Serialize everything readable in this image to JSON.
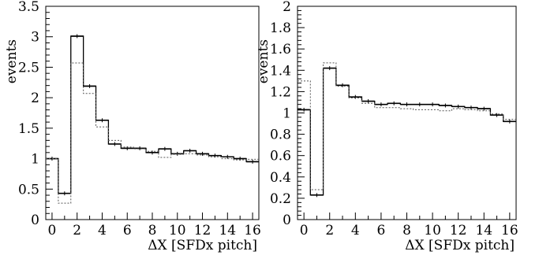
{
  "chart_data": [
    {
      "type": "histogram",
      "xlabel": "ΔX [SFDx pitch]",
      "ylabel": "events",
      "xlim": [
        -0.5,
        16.5
      ],
      "ylim": [
        0,
        3.5
      ],
      "xticks": [
        "0",
        "2",
        "4",
        "6",
        "8",
        "10",
        "12",
        "14",
        "16"
      ],
      "xtick_values": [
        0,
        2,
        4,
        6,
        8,
        10,
        12,
        14,
        16
      ],
      "yticks": [
        "0",
        "0.5",
        "1",
        "1.5",
        "2",
        "2.5",
        "3",
        "3.5"
      ],
      "ytick_values": [
        0,
        0.5,
        1,
        1.5,
        2,
        2.5,
        3,
        3.5
      ],
      "bin_edges": [
        -0.5,
        0.5,
        1.5,
        2.5,
        3.5,
        4.5,
        5.5,
        6.5,
        7.5,
        8.5,
        9.5,
        10.5,
        11.5,
        12.5,
        13.5,
        14.5,
        15.5,
        16.5
      ],
      "series": [
        {
          "style": "solid",
          "values": [
            1.0,
            0.43,
            3.01,
            2.19,
            1.63,
            1.24,
            1.17,
            1.17,
            1.1,
            1.16,
            1.08,
            1.13,
            1.08,
            1.05,
            1.03,
            1.0,
            0.95
          ]
        },
        {
          "style": "dotted",
          "values": [
            1.0,
            0.27,
            2.57,
            2.07,
            1.52,
            1.3,
            1.19,
            1.16,
            1.12,
            1.02,
            1.07,
            1.08,
            1.06,
            1.03,
            1.0,
            0.98,
            0.99
          ]
        }
      ]
    },
    {
      "type": "histogram",
      "xlabel": "ΔX [SFDx pitch]",
      "ylabel": "events",
      "xlim": [
        -0.5,
        16.5
      ],
      "ylim": [
        0,
        2
      ],
      "xticks": [
        "0",
        "2",
        "4",
        "6",
        "8",
        "10",
        "12",
        "14",
        "16"
      ],
      "xtick_values": [
        0,
        2,
        4,
        6,
        8,
        10,
        12,
        14,
        16
      ],
      "yticks": [
        "0",
        "0.2",
        "0.4",
        "0.6",
        "0.8",
        "1",
        "1.2",
        "1.4",
        "1.6",
        "1.8",
        "2"
      ],
      "ytick_values": [
        0,
        0.2,
        0.4,
        0.6,
        0.8,
        1.0,
        1.2,
        1.4,
        1.6,
        1.8,
        2.0
      ],
      "bin_edges": [
        -0.5,
        0.5,
        1.5,
        2.5,
        3.5,
        4.5,
        5.5,
        6.5,
        7.5,
        8.5,
        9.5,
        10.5,
        11.5,
        12.5,
        13.5,
        14.5,
        15.5,
        16.5
      ],
      "series": [
        {
          "style": "solid",
          "values": [
            1.03,
            0.23,
            1.42,
            1.26,
            1.15,
            1.11,
            1.08,
            1.09,
            1.08,
            1.08,
            1.08,
            1.07,
            1.06,
            1.05,
            1.04,
            0.98,
            0.92
          ]
        },
        {
          "style": "dotted",
          "values": [
            1.3,
            0.28,
            1.47,
            1.25,
            1.14,
            1.09,
            1.05,
            1.05,
            1.04,
            1.03,
            1.03,
            1.02,
            1.04,
            1.03,
            1.02,
            0.99,
            0.94
          ]
        }
      ]
    }
  ]
}
